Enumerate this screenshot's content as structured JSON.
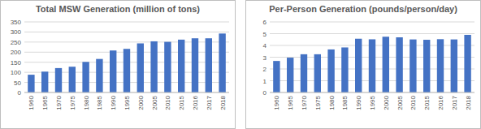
{
  "chart_data": [
    {
      "type": "bar",
      "title": "Total MSW Generation (million of tons)",
      "categories": [
        "1960",
        "1965",
        "1970",
        "1975",
        "1980",
        "1985",
        "1990",
        "1995",
        "2000",
        "2005",
        "2010",
        "2015",
        "2016",
        "2017",
        "2018"
      ],
      "values": [
        88.1,
        103.4,
        121.1,
        127.8,
        151.6,
        166.3,
        208.3,
        216.3,
        243.5,
        253.7,
        251.1,
        262.1,
        268.7,
        268.7,
        292.4
      ],
      "color": "#4472c4",
      "ylim": [
        0,
        350
      ],
      "yticks": [
        0,
        50,
        100,
        150,
        200,
        250,
        300,
        350
      ],
      "grid": true
    },
    {
      "type": "bar",
      "title": "Per-Person Generation (pounds/person/day)",
      "categories": [
        "1960",
        "1965",
        "1970",
        "1975",
        "1980",
        "1985",
        "1990",
        "1995",
        "2000",
        "2005",
        "2010",
        "2015",
        "2016",
        "2017",
        "2018"
      ],
      "values": [
        2.68,
        2.96,
        3.25,
        3.25,
        3.66,
        3.83,
        4.57,
        4.52,
        4.74,
        4.69,
        4.51,
        4.48,
        4.53,
        4.51,
        4.9
      ],
      "color": "#4472c4",
      "ylim": [
        0,
        6
      ],
      "yticks": [
        0,
        1,
        2,
        3,
        4,
        5,
        6
      ],
      "grid": true
    }
  ]
}
